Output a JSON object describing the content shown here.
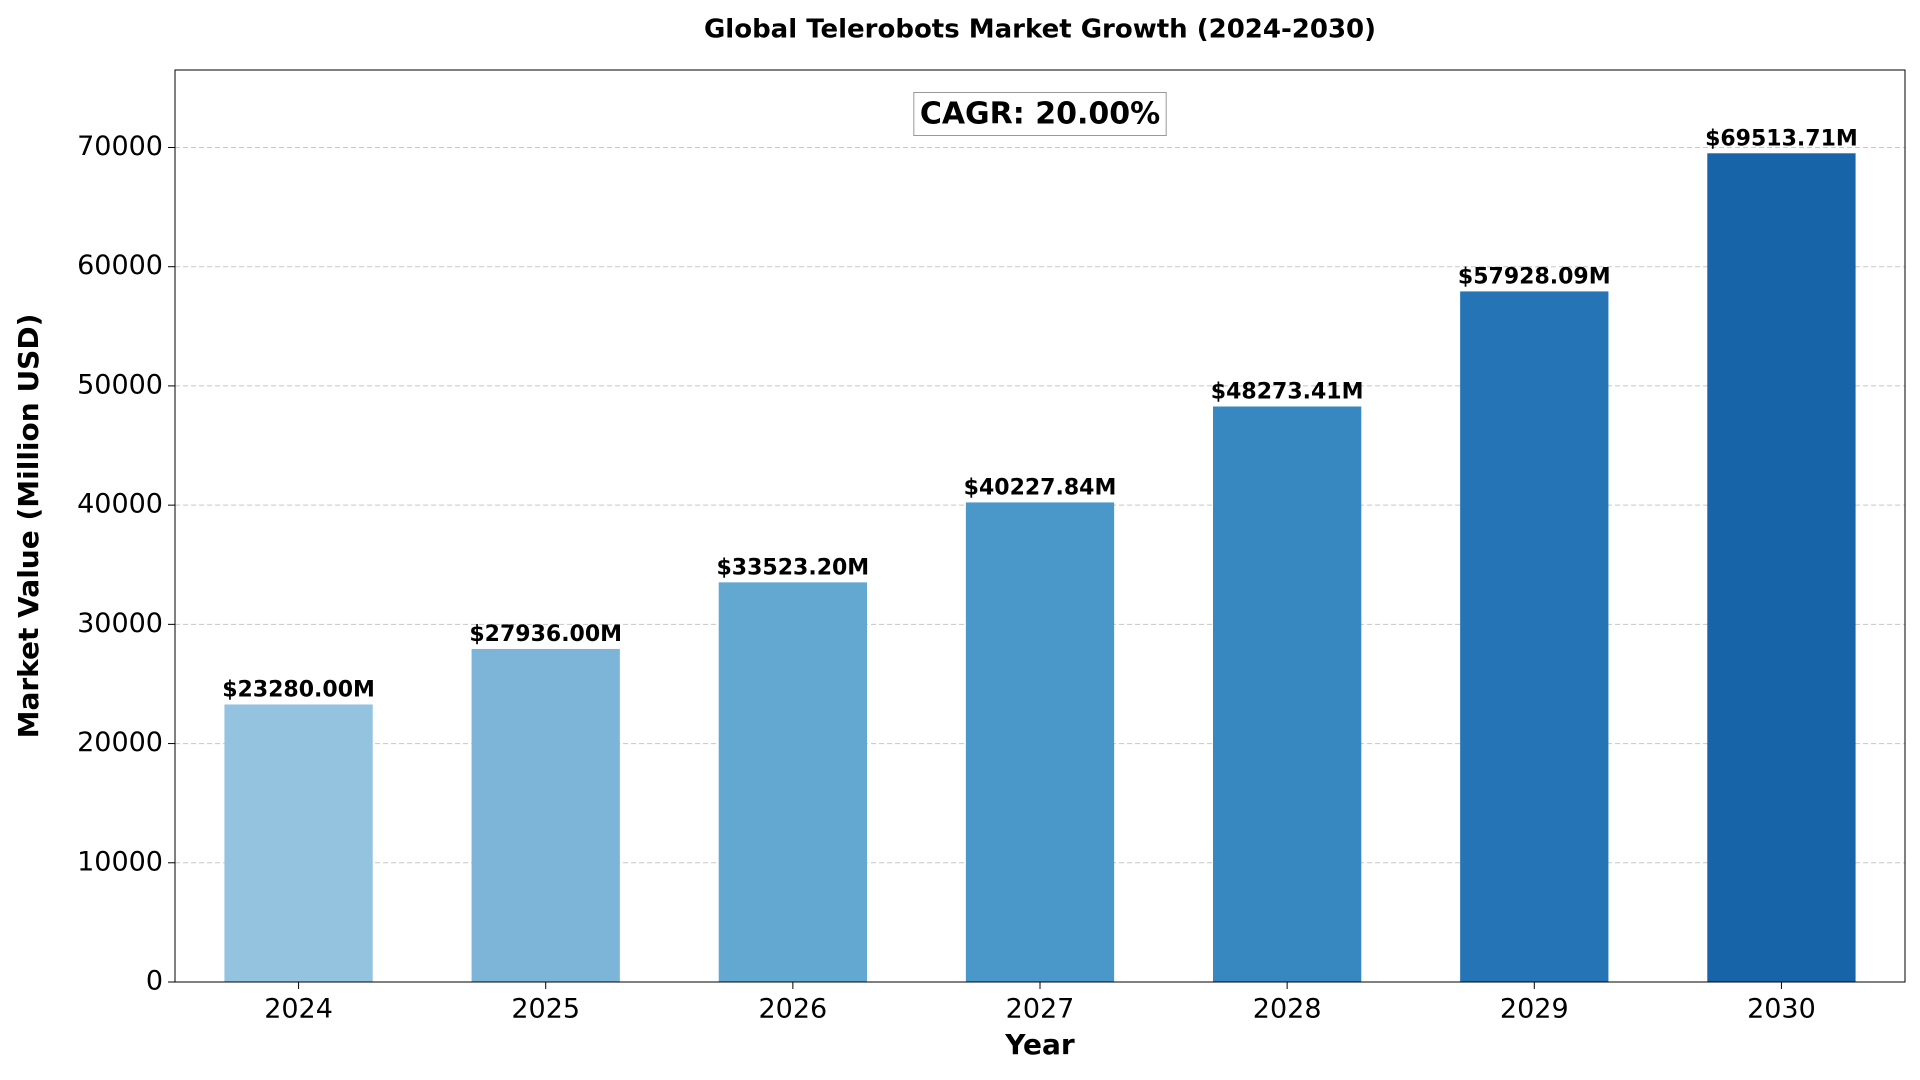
{
  "chart_data": {
    "type": "bar",
    "title": "Global Telerobots Market Growth (2024-2030)",
    "x_label": "Year",
    "y_label": "Market Value (Million USD)",
    "annotation": "CAGR: 20.00%",
    "categories": [
      "2024",
      "2025",
      "2026",
      "2027",
      "2028",
      "2029",
      "2030"
    ],
    "values": [
      23280.0,
      27936.0,
      33523.2,
      40227.84,
      48273.41,
      57928.09,
      69513.71
    ],
    "value_labels": [
      "$23280.00M",
      "$27936.00M",
      "$33523.20M",
      "$40227.84M",
      "$48273.41M",
      "$57928.09M",
      "$69513.71M"
    ],
    "colors": [
      "#93c3df",
      "#7db5d8",
      "#62a8d1",
      "#4a98c9",
      "#3787c0",
      "#2574b5",
      "#1764a9"
    ],
    "ylim": [
      0,
      76500
    ],
    "yticks": [
      0,
      10000,
      20000,
      30000,
      40000,
      50000,
      60000,
      70000
    ],
    "grid": true
  }
}
